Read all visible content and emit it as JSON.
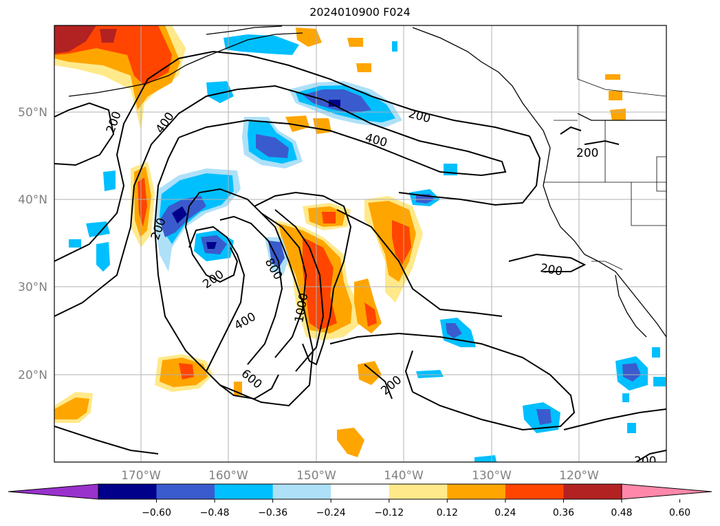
{
  "title": "2024010900 F024",
  "map": {
    "lon_ticks": [
      "170°W",
      "160°W",
      "150°W",
      "140°W",
      "130°W",
      "120°W"
    ],
    "lat_ticks": [
      "50°N",
      "40°N",
      "30°N",
      "20°N"
    ],
    "contour_labels": [
      "200",
      "400",
      "600",
      "800",
      "1000",
      "200",
      "400",
      "200",
      "200",
      "200",
      "200",
      "200",
      "200"
    ]
  },
  "colorbar": {
    "ticks": [
      "−0.60",
      "−0.48",
      "−0.36",
      "−0.24",
      "−0.12",
      "0.12",
      "0.24",
      "0.36",
      "0.48",
      "0.60"
    ],
    "colors": [
      "#9932cc",
      "#00008b",
      "#3a5bcd",
      "#00bfff",
      "#aee0f8",
      "#ffffff",
      "#ffe98a",
      "#ffa500",
      "#ff4500",
      "#b22222",
      "#ff88aa"
    ],
    "extend": "both"
  }
}
